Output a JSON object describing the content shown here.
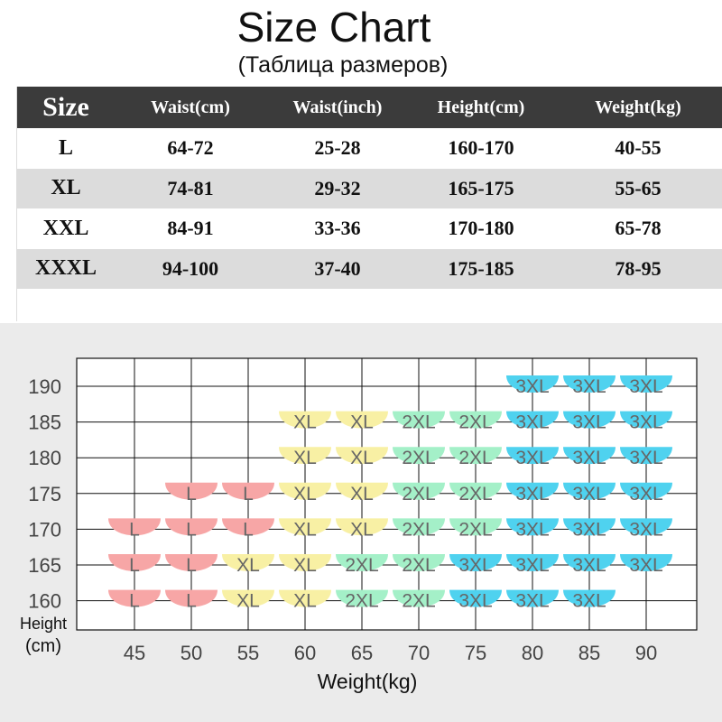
{
  "title": "Size Chart",
  "subtitle": "(Таблица размеров)",
  "table": {
    "headers": [
      "Size",
      "Waist(cm)",
      "Waist(inch)",
      "Height(cm)",
      "Weight(kg)"
    ],
    "rows": [
      [
        "L",
        "64-72",
        "25-28",
        "160-170",
        "40-55"
      ],
      [
        "XL",
        "74-81",
        "29-32",
        "165-175",
        "55-65"
      ],
      [
        "XXL",
        "84-91",
        "33-36",
        "170-180",
        "65-78"
      ],
      [
        "XXXL",
        "94-100",
        "37-40",
        "175-185",
        "78-95"
      ]
    ]
  },
  "chart_data": {
    "type": "table",
    "xlabel": "Weight(kg)",
    "ylabel_line1": "Height",
    "ylabel_line2": "(cm)",
    "x": [
      45,
      50,
      55,
      60,
      65,
      70,
      75,
      80,
      85,
      90
    ],
    "y": [
      190,
      185,
      180,
      175,
      170,
      165,
      160
    ],
    "grid": true,
    "size_colors": {
      "L": "#f7a6a6",
      "XL": "#f8f0a4",
      "2XL": "#a4f0c8",
      "3XL": "#4fd2ef"
    },
    "cells": [
      {
        "x": 80,
        "y": 190,
        "size": "3XL"
      },
      {
        "x": 85,
        "y": 190,
        "size": "3XL"
      },
      {
        "x": 90,
        "y": 190,
        "size": "3XL"
      },
      {
        "x": 60,
        "y": 185,
        "size": "XL"
      },
      {
        "x": 65,
        "y": 185,
        "size": "XL"
      },
      {
        "x": 70,
        "y": 185,
        "size": "2XL"
      },
      {
        "x": 75,
        "y": 185,
        "size": "2XL"
      },
      {
        "x": 80,
        "y": 185,
        "size": "3XL"
      },
      {
        "x": 85,
        "y": 185,
        "size": "3XL"
      },
      {
        "x": 90,
        "y": 185,
        "size": "3XL"
      },
      {
        "x": 60,
        "y": 180,
        "size": "XL"
      },
      {
        "x": 65,
        "y": 180,
        "size": "XL"
      },
      {
        "x": 70,
        "y": 180,
        "size": "2XL"
      },
      {
        "x": 75,
        "y": 180,
        "size": "2XL"
      },
      {
        "x": 80,
        "y": 180,
        "size": "3XL"
      },
      {
        "x": 85,
        "y": 180,
        "size": "3XL"
      },
      {
        "x": 90,
        "y": 180,
        "size": "3XL"
      },
      {
        "x": 50,
        "y": 175,
        "size": "L"
      },
      {
        "x": 55,
        "y": 175,
        "size": "L"
      },
      {
        "x": 60,
        "y": 175,
        "size": "XL"
      },
      {
        "x": 65,
        "y": 175,
        "size": "XL"
      },
      {
        "x": 70,
        "y": 175,
        "size": "2XL"
      },
      {
        "x": 75,
        "y": 175,
        "size": "2XL"
      },
      {
        "x": 80,
        "y": 175,
        "size": "3XL"
      },
      {
        "x": 85,
        "y": 175,
        "size": "3XL"
      },
      {
        "x": 90,
        "y": 175,
        "size": "3XL"
      },
      {
        "x": 45,
        "y": 170,
        "size": "L"
      },
      {
        "x": 50,
        "y": 170,
        "size": "L"
      },
      {
        "x": 55,
        "y": 170,
        "size": "L"
      },
      {
        "x": 60,
        "y": 170,
        "size": "XL"
      },
      {
        "x": 65,
        "y": 170,
        "size": "XL"
      },
      {
        "x": 70,
        "y": 170,
        "size": "2XL"
      },
      {
        "x": 75,
        "y": 170,
        "size": "2XL"
      },
      {
        "x": 80,
        "y": 170,
        "size": "3XL"
      },
      {
        "x": 85,
        "y": 170,
        "size": "3XL"
      },
      {
        "x": 90,
        "y": 170,
        "size": "3XL"
      },
      {
        "x": 45,
        "y": 165,
        "size": "L"
      },
      {
        "x": 50,
        "y": 165,
        "size": "L"
      },
      {
        "x": 55,
        "y": 165,
        "size": "XL"
      },
      {
        "x": 60,
        "y": 165,
        "size": "XL"
      },
      {
        "x": 65,
        "y": 165,
        "size": "2XL"
      },
      {
        "x": 70,
        "y": 165,
        "size": "2XL"
      },
      {
        "x": 75,
        "y": 165,
        "size": "3XL"
      },
      {
        "x": 80,
        "y": 165,
        "size": "3XL"
      },
      {
        "x": 85,
        "y": 165,
        "size": "3XL"
      },
      {
        "x": 90,
        "y": 165,
        "size": "3XL"
      },
      {
        "x": 45,
        "y": 160,
        "size": "L"
      },
      {
        "x": 50,
        "y": 160,
        "size": "L"
      },
      {
        "x": 55,
        "y": 160,
        "size": "XL"
      },
      {
        "x": 60,
        "y": 160,
        "size": "XL"
      },
      {
        "x": 65,
        "y": 160,
        "size": "2XL"
      },
      {
        "x": 70,
        "y": 160,
        "size": "2XL"
      },
      {
        "x": 75,
        "y": 160,
        "size": "3XL"
      },
      {
        "x": 80,
        "y": 160,
        "size": "3XL"
      },
      {
        "x": 85,
        "y": 160,
        "size": "3XL"
      }
    ]
  }
}
